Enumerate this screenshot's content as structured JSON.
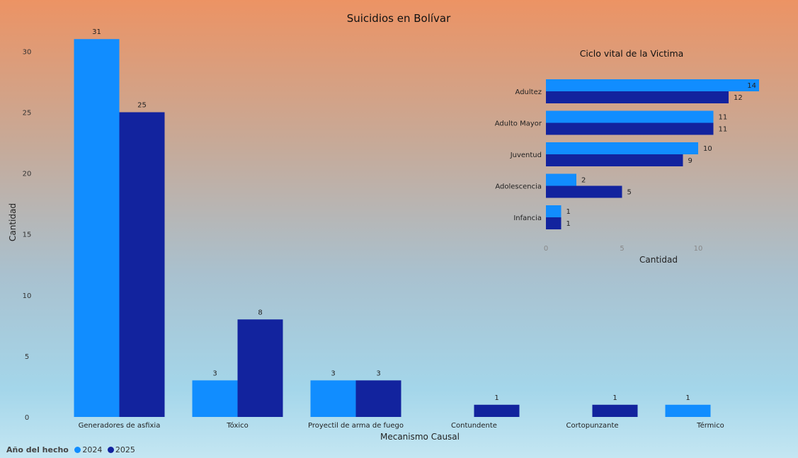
{
  "chart_data": [
    {
      "type": "bar",
      "orientation": "vertical",
      "title": "Suicidios en Bolívar",
      "xlabel": "Mecanismo Causal",
      "ylabel": "Cantidad",
      "categories": [
        "Generadores de asfixia",
        "Tóxico",
        "Proyectil de arma de fuego",
        "Contundente",
        "Cortopunzante",
        "Térmico"
      ],
      "series": [
        {
          "name": "2024",
          "color": "#118dff",
          "values": [
            31,
            3,
            3,
            null,
            null,
            1
          ]
        },
        {
          "name": "2025",
          "color": "#12239e",
          "values": [
            25,
            8,
            3,
            1,
            1,
            null
          ]
        }
      ],
      "ylim": [
        0,
        32
      ],
      "yticks": [
        0,
        5,
        10,
        15,
        20,
        25,
        30
      ],
      "data_labels": true,
      "grid": false,
      "legend": {
        "title": "Año del hecho",
        "position": "bottom-left"
      }
    },
    {
      "type": "bar",
      "orientation": "horizontal",
      "title": "Ciclo vital de la Victima",
      "xlabel": "Cantidad",
      "ylabel": "",
      "categories": [
        "Adultez",
        "Adulto Mayor",
        "Juventud",
        "Adolescencia",
        "Infancia"
      ],
      "series": [
        {
          "name": "2024",
          "color": "#118dff",
          "values": [
            14,
            11,
            10,
            2,
            1
          ]
        },
        {
          "name": "2025",
          "color": "#12239e",
          "values": [
            12,
            11,
            9,
            5,
            1
          ]
        }
      ],
      "xlim": [
        0,
        14
      ],
      "xticks": [
        0,
        5,
        10
      ],
      "data_labels": true,
      "grid": false
    }
  ],
  "legend": {
    "title": "Año del hecho",
    "items": [
      {
        "label": "2024",
        "color": "#118dff"
      },
      {
        "label": "2025",
        "color": "#12239e"
      }
    ]
  }
}
